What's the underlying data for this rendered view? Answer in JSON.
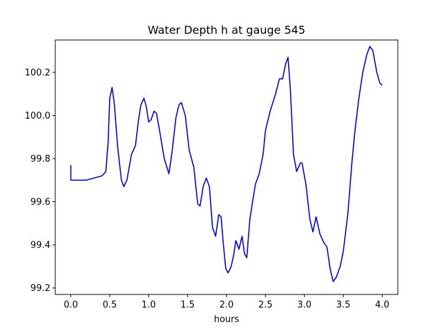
{
  "chart_data": {
    "type": "line",
    "title": "Water Depth h at gauge 545",
    "xlabel": "hours",
    "ylabel": "",
    "xlim": [
      -0.2,
      4.2
    ],
    "ylim": [
      99.17,
      100.35
    ],
    "grid": false,
    "x_ticks": [
      {
        "value": 0.0,
        "label": "0.0"
      },
      {
        "value": 0.5,
        "label": "0.5"
      },
      {
        "value": 1.0,
        "label": "1.0"
      },
      {
        "value": 1.5,
        "label": "1.5"
      },
      {
        "value": 2.0,
        "label": "2.0"
      },
      {
        "value": 2.5,
        "label": "2.5"
      },
      {
        "value": 3.0,
        "label": "3.0"
      },
      {
        "value": 3.5,
        "label": "3.5"
      },
      {
        "value": 4.0,
        "label": "4.0"
      }
    ],
    "y_ticks": [
      {
        "value": 99.2,
        "label": "99.2"
      },
      {
        "value": 99.4,
        "label": "99.4"
      },
      {
        "value": 99.6,
        "label": "99.6"
      },
      {
        "value": 99.8,
        "label": "99.8"
      },
      {
        "value": 100.0,
        "label": "100.0"
      },
      {
        "value": 100.2,
        "label": "100.2"
      }
    ],
    "series": [
      {
        "color": "#0000ff",
        "points": [
          [
            0.0,
            99.77
          ],
          [
            0.0,
            99.7
          ],
          [
            0.1,
            99.7
          ],
          [
            0.2,
            99.7
          ],
          [
            0.3,
            99.71
          ],
          [
            0.4,
            99.72
          ],
          [
            0.45,
            99.74
          ],
          [
            0.48,
            99.88
          ],
          [
            0.5,
            100.08
          ],
          [
            0.53,
            100.13
          ],
          [
            0.56,
            100.05
          ],
          [
            0.6,
            99.86
          ],
          [
            0.65,
            99.7
          ],
          [
            0.68,
            99.67
          ],
          [
            0.72,
            99.7
          ],
          [
            0.78,
            99.82
          ],
          [
            0.83,
            99.86
          ],
          [
            0.87,
            99.98
          ],
          [
            0.9,
            100.05
          ],
          [
            0.94,
            100.08
          ],
          [
            0.97,
            100.04
          ],
          [
            1.0,
            99.97
          ],
          [
            1.03,
            99.98
          ],
          [
            1.07,
            100.02
          ],
          [
            1.1,
            100.01
          ],
          [
            1.14,
            99.93
          ],
          [
            1.2,
            99.8
          ],
          [
            1.26,
            99.73
          ],
          [
            1.3,
            99.83
          ],
          [
            1.35,
            99.99
          ],
          [
            1.39,
            100.05
          ],
          [
            1.42,
            100.06
          ],
          [
            1.47,
            100.0
          ],
          [
            1.52,
            99.84
          ],
          [
            1.58,
            99.76
          ],
          [
            1.63,
            99.59
          ],
          [
            1.66,
            99.58
          ],
          [
            1.7,
            99.67
          ],
          [
            1.74,
            99.71
          ],
          [
            1.78,
            99.67
          ],
          [
            1.82,
            99.48
          ],
          [
            1.86,
            99.44
          ],
          [
            1.9,
            99.54
          ],
          [
            1.93,
            99.53
          ],
          [
            1.96,
            99.4
          ],
          [
            1.99,
            99.29
          ],
          [
            2.02,
            99.27
          ],
          [
            2.06,
            99.3
          ],
          [
            2.09,
            99.35
          ],
          [
            2.12,
            99.42
          ],
          [
            2.16,
            99.38
          ],
          [
            2.2,
            99.44
          ],
          [
            2.23,
            99.36
          ],
          [
            2.26,
            99.34
          ],
          [
            2.3,
            99.52
          ],
          [
            2.37,
            99.68
          ],
          [
            2.42,
            99.73
          ],
          [
            2.47,
            99.82
          ],
          [
            2.5,
            99.93
          ],
          [
            2.56,
            100.02
          ],
          [
            2.63,
            100.1
          ],
          [
            2.68,
            100.17
          ],
          [
            2.72,
            100.17
          ],
          [
            2.76,
            100.24
          ],
          [
            2.79,
            100.27
          ],
          [
            2.82,
            100.12
          ],
          [
            2.86,
            99.82
          ],
          [
            2.9,
            99.74
          ],
          [
            2.95,
            99.78
          ],
          [
            2.97,
            99.78
          ],
          [
            3.02,
            99.68
          ],
          [
            3.07,
            99.52
          ],
          [
            3.11,
            99.46
          ],
          [
            3.15,
            99.53
          ],
          [
            3.2,
            99.45
          ],
          [
            3.25,
            99.41
          ],
          [
            3.29,
            99.39
          ],
          [
            3.33,
            99.29
          ],
          [
            3.37,
            99.23
          ],
          [
            3.41,
            99.25
          ],
          [
            3.46,
            99.3
          ],
          [
            3.5,
            99.37
          ],
          [
            3.56,
            99.55
          ],
          [
            3.61,
            99.78
          ],
          [
            3.65,
            99.93
          ],
          [
            3.7,
            100.08
          ],
          [
            3.75,
            100.2
          ],
          [
            3.8,
            100.28
          ],
          [
            3.84,
            100.32
          ],
          [
            3.88,
            100.3
          ],
          [
            3.93,
            100.2
          ],
          [
            3.97,
            100.15
          ],
          [
            4.0,
            100.14
          ]
        ]
      }
    ]
  }
}
